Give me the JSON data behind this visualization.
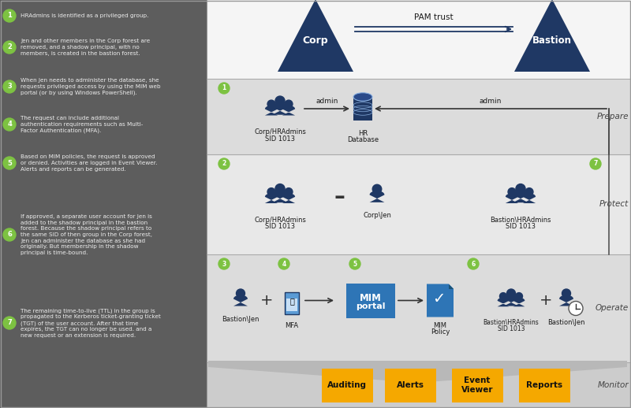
{
  "bg_color": "#ffffff",
  "left_panel_color": "#5d5d5d",
  "right_bg": "#e8e8e8",
  "top_area_color": "#ffffff",
  "dark_navy": "#1f3864",
  "green_badge": "#7dc242",
  "yellow_badge": "#f5a800",
  "mim_blue": "#2e75b6",
  "text_white": "#ffffff",
  "text_dark": "#1a1a1a",
  "text_light": "#dddddd",
  "section_bg_alt": "#d6d6d6",
  "section_bg": "#e0e0e0",
  "monitor_bg": "#d0d0d0",
  "steps": [
    "HRAdmins is identified as a privileged group.",
    "Jen and other members in the Corp forest are\nremoved, and a shadow principal, with no\nmembers, is created in the bastion forest.",
    "When Jen needs to administer the database, she\nrequests privileged access by using the MIM web\nportal (or by using Windows PowerShell).",
    "The request can include additional\nauthentication requirements such as Multi-\nFactor Authentication (MFA).",
    "Based on MIM policies, the request is approved\nor denied. Activities are logged in Event Viewer.\nAlerts and reports can be generated.",
    "If approved, a separate user account for Jen is\nadded to the shadow principal in the bastion\nforest. Because the shadow principal refers to\nthe same SID of then group in the Corp forest,\nJen can administer the database as she had\noriginally. But membership in the shadow\nprincipal is time-bound.",
    "The remaining time-to-live (TTL) in the group is\npropagated to the Kerberos ticket-granting ticket\n(TGT) of the user account. After that time\nexpires, the TGT can no longer be used. and a\nnew request or an extension is required."
  ],
  "section_labels": [
    "Prepare",
    "Protect",
    "Operate",
    "Monitor"
  ],
  "monitor_items": [
    "Auditing",
    "Alerts",
    "Event\nViewer",
    "Reports"
  ]
}
